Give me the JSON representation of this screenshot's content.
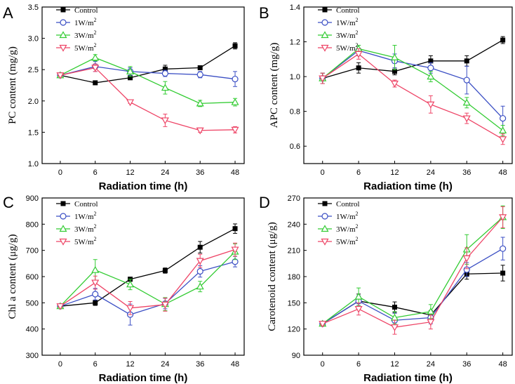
{
  "colors": {
    "Control": "#000000",
    "1W/m2": "#3b4fc4",
    "3W/m2": "#33cc33",
    "5W/m2": "#ee4466"
  },
  "chart_data": [
    {
      "type": "line",
      "panel": "A",
      "ylabel": "PC content (mg/g)",
      "xlabel": "Radiation time (h)",
      "categories": [
        "0",
        "6",
        "12",
        "24",
        "36",
        "48"
      ],
      "ylim": [
        1.0,
        3.5
      ],
      "yticks": [
        "1.0",
        "1.5",
        "2.0",
        "2.5",
        "3.0",
        "3.5"
      ],
      "legend_position": "top-left",
      "series": [
        {
          "name": "Control",
          "values": [
            2.41,
            2.29,
            2.37,
            2.51,
            2.53,
            2.88
          ],
          "errors": [
            0.02,
            0.02,
            0.03,
            0.06,
            0.03,
            0.05
          ]
        },
        {
          "name": "1W/m",
          "sup": "2",
          "values": [
            2.41,
            2.55,
            2.47,
            2.44,
            2.42,
            2.35
          ],
          "errors": [
            0.02,
            0.08,
            0.06,
            0.05,
            0.05,
            0.12
          ]
        },
        {
          "name": "3W/m",
          "sup": "2",
          "values": [
            2.41,
            2.69,
            2.47,
            2.21,
            1.96,
            1.98
          ],
          "errors": [
            0.02,
            0.05,
            0.08,
            0.1,
            0.05,
            0.06
          ]
        },
        {
          "name": "5W/m",
          "sup": "2",
          "values": [
            2.41,
            2.53,
            1.98,
            1.69,
            1.53,
            1.54
          ],
          "errors": [
            0.02,
            0.06,
            0.02,
            0.1,
            0.03,
            0.05
          ]
        }
      ]
    },
    {
      "type": "line",
      "panel": "B",
      "ylabel": "APC content (mg/g)",
      "xlabel": "Radiation time (h)",
      "categories": [
        "0",
        "6",
        "12",
        "24",
        "36",
        "48"
      ],
      "ylim": [
        0.5,
        1.4
      ],
      "yticks": [
        "0.6",
        "0.8",
        "1.0",
        "1.2",
        "1.4"
      ],
      "legend_position": "top-left",
      "series": [
        {
          "name": "Control",
          "values": [
            0.99,
            1.05,
            1.03,
            1.09,
            1.09,
            1.21
          ],
          "errors": [
            0.03,
            0.03,
            0.02,
            0.03,
            0.03,
            0.02
          ]
        },
        {
          "name": "1W/m",
          "sup": "2",
          "values": [
            0.99,
            1.15,
            1.09,
            1.05,
            0.98,
            0.76
          ],
          "errors": [
            0.03,
            0.03,
            0.04,
            0.03,
            0.08,
            0.07
          ]
        },
        {
          "name": "3W/m",
          "sup": "2",
          "values": [
            0.99,
            1.16,
            1.11,
            1.0,
            0.85,
            0.69
          ],
          "errors": [
            0.03,
            0.02,
            0.07,
            0.03,
            0.03,
            0.03
          ]
        },
        {
          "name": "5W/m",
          "sup": "2",
          "values": [
            0.99,
            1.13,
            0.96,
            0.84,
            0.76,
            0.64
          ],
          "errors": [
            0.03,
            0.03,
            0.02,
            0.05,
            0.03,
            0.03
          ]
        }
      ]
    },
    {
      "type": "line",
      "panel": "C",
      "ylabel": "Chl a content (μg/g)",
      "xlabel": "Radiation time (h)",
      "categories": [
        "0",
        "6",
        "12",
        "24",
        "36",
        "48"
      ],
      "ylim": [
        300,
        900
      ],
      "yticks": [
        "300",
        "400",
        "500",
        "600",
        "700",
        "800",
        "900"
      ],
      "legend_position": "top-left",
      "series": [
        {
          "name": "Control",
          "values": [
            487,
            500,
            590,
            623,
            712,
            783
          ],
          "errors": [
            5,
            10,
            8,
            10,
            22,
            18
          ]
        },
        {
          "name": "1W/m",
          "sup": "2",
          "values": [
            487,
            533,
            455,
            497,
            620,
            657
          ],
          "errors": [
            5,
            22,
            40,
            20,
            22,
            20
          ]
        },
        {
          "name": "3W/m",
          "sup": "2",
          "values": [
            487,
            625,
            570,
            495,
            562,
            695
          ],
          "errors": [
            5,
            40,
            20,
            25,
            20,
            30
          ]
        },
        {
          "name": "5W/m",
          "sup": "2",
          "values": [
            487,
            577,
            480,
            493,
            660,
            703
          ],
          "errors": [
            5,
            25,
            25,
            25,
            25,
            25
          ]
        }
      ]
    },
    {
      "type": "line",
      "panel": "D",
      "ylabel": "Carotenoid content (μg/g)",
      "xlabel": "Radiation time (h)",
      "categories": [
        "0",
        "6",
        "12",
        "24",
        "36",
        "48"
      ],
      "ylim": [
        90,
        270
      ],
      "yticks": [
        "90",
        "120",
        "150",
        "180",
        "210",
        "240",
        "270"
      ],
      "legend_position": "top-left",
      "series": [
        {
          "name": "Control",
          "values": [
            126,
            152,
            145,
            136,
            183,
            184
          ],
          "errors": [
            2,
            8,
            6,
            5,
            6,
            9
          ]
        },
        {
          "name": "1W/m",
          "sup": "2",
          "values": [
            126,
            152,
            130,
            133,
            188,
            212
          ],
          "errors": [
            2,
            6,
            8,
            7,
            8,
            13
          ]
        },
        {
          "name": "3W/m",
          "sup": "2",
          "values": [
            126,
            157,
            133,
            140,
            211,
            248
          ],
          "errors": [
            2,
            10,
            7,
            8,
            17,
            13
          ]
        },
        {
          "name": "5W/m",
          "sup": "2",
          "values": [
            126,
            143,
            122,
            128,
            201,
            248
          ],
          "errors": [
            2,
            7,
            8,
            8,
            12,
            12
          ]
        }
      ]
    }
  ]
}
